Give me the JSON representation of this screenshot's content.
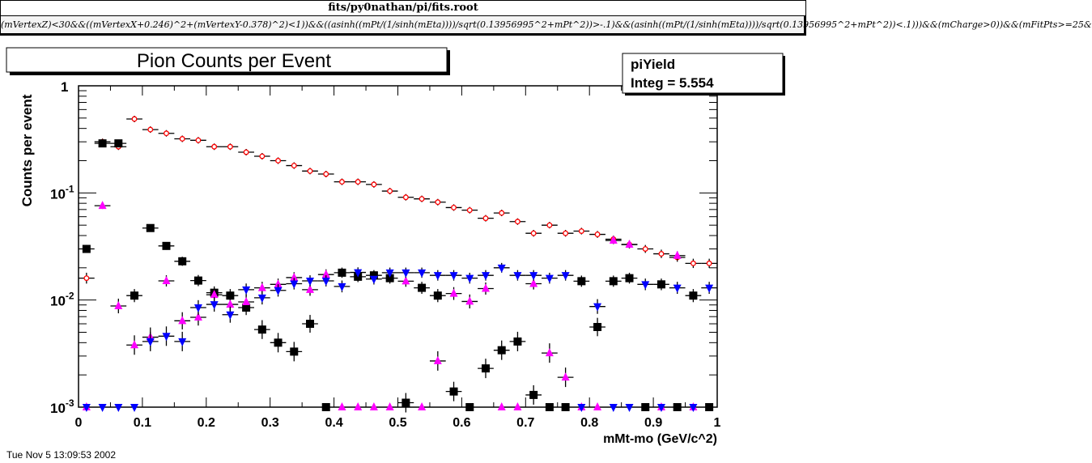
{
  "window": {
    "file_title": "fits/py0nathan/pi/fits.root",
    "cut_expression": "(mVertexZ)<30&&((mVertexX+0.246)^2+(mVertexY-0.378)^2)<1))&&((asinh((mPt/(1/sinh(mEta))))/sqrt(0.13956995^2+mPt^2))>-.1)&&(asinh((mPt/(1/sinh(mEta))))/sqrt(0.13956995^2+mPt^2))<.1)))&&(mCharge>0))&&(mFitPts>=25&"
  },
  "stats_box": {
    "name": "piYield",
    "integ_label": "Integ =  5.554"
  },
  "timestamp": "Tue Nov  5 13:09:53 2002",
  "chart_data": {
    "type": "scatter",
    "title": "Pion Counts per Event",
    "xlabel": "mMt-mo (GeV/c^2)",
    "ylabel": "Counts per event",
    "xlim": [
      0,
      1
    ],
    "ylim": [
      0.001,
      1
    ],
    "yscale": "log",
    "x_tick_labels": [
      "0",
      "0.1",
      "0.2",
      "0.3",
      "0.4",
      "0.5",
      "0.6",
      "0.7",
      "0.8",
      "0.9",
      "1"
    ],
    "y_tick_labels": [
      {
        "base": "1",
        "exp": ""
      },
      {
        "base": "10",
        "exp": "-1"
      },
      {
        "base": "10",
        "exp": "-2"
      },
      {
        "base": "10",
        "exp": "-3"
      }
    ],
    "bin_width": 0.025,
    "x": [
      0.0125,
      0.0375,
      0.0625,
      0.0875,
      0.1125,
      0.1375,
      0.1625,
      0.1875,
      0.2125,
      0.2375,
      0.2625,
      0.2875,
      0.3125,
      0.3375,
      0.3625,
      0.3875,
      0.4125,
      0.4375,
      0.4625,
      0.4875,
      0.5125,
      0.5375,
      0.5625,
      0.5875,
      0.6125,
      0.6375,
      0.6625,
      0.6875,
      0.7125,
      0.7375,
      0.7625,
      0.7875,
      0.8125,
      0.8375,
      0.8625,
      0.8875,
      0.9125,
      0.9375,
      0.9625,
      0.9875
    ],
    "series": [
      {
        "name": "total",
        "marker": "open-circle",
        "color": "#ff0000",
        "values": [
          0.016,
          0.3,
          0.27,
          0.49,
          0.39,
          0.36,
          0.32,
          0.31,
          0.27,
          0.27,
          0.24,
          0.22,
          0.2,
          0.18,
          0.16,
          0.15,
          0.127,
          0.127,
          0.12,
          0.104,
          0.091,
          0.088,
          0.082,
          0.073,
          0.069,
          0.058,
          0.065,
          0.054,
          0.042,
          0.05,
          0.042,
          0.044,
          0.041,
          0.037,
          0.033,
          0.03,
          0.027,
          0.025,
          0.022,
          0.022
        ]
      },
      {
        "name": "black",
        "marker": "square",
        "color": "#000000",
        "values": [
          0.03,
          0.29,
          0.29,
          0.011,
          0.047,
          0.032,
          0.023,
          0.0152,
          0.0117,
          0.011,
          0.0085,
          0.0053,
          0.004,
          0.0033,
          0.006,
          0,
          0.018,
          0.0165,
          0.017,
          0.016,
          0.0011,
          0.013,
          0.011,
          0.0014,
          0,
          0.0023,
          0.0034,
          0.0041,
          0.0013,
          0,
          0,
          0.015,
          0.0056,
          0.015,
          0.016,
          0,
          0.014,
          0,
          0.011,
          0
        ]
      },
      {
        "name": "magenta",
        "marker": "triangle-up",
        "color": "#ff00ff",
        "values": [
          0,
          0.076,
          0.0088,
          0.0038,
          0.0045,
          0.0151,
          0.0064,
          0.0069,
          0.0112,
          0.0091,
          0.0096,
          0.013,
          0.014,
          0.0162,
          0.0125,
          0.0173,
          0,
          0,
          0,
          0,
          0.015,
          0,
          0.0027,
          0.0115,
          0.0097,
          0.0128,
          0,
          0,
          0.0142,
          0.0032,
          0.0019,
          0,
          0,
          0.036,
          0.033,
          null,
          0,
          0.026,
          0,
          null
        ]
      },
      {
        "name": "blue",
        "marker": "triangle-down",
        "color": "#0000ff",
        "values": [
          0,
          0,
          0,
          0,
          0.0041,
          0.0046,
          0.0041,
          0.0085,
          0.0091,
          0.0073,
          0.0125,
          0.0105,
          0.0123,
          0.0142,
          0.0151,
          0.0151,
          0.0134,
          0.0181,
          0.0157,
          0.018,
          0.018,
          0.018,
          0.017,
          0.017,
          0.016,
          0.017,
          0.02,
          0.017,
          0.017,
          0.016,
          0.017,
          0,
          0.0087,
          0,
          0,
          0.014,
          0,
          0.013,
          0,
          0.013
        ]
      }
    ]
  }
}
